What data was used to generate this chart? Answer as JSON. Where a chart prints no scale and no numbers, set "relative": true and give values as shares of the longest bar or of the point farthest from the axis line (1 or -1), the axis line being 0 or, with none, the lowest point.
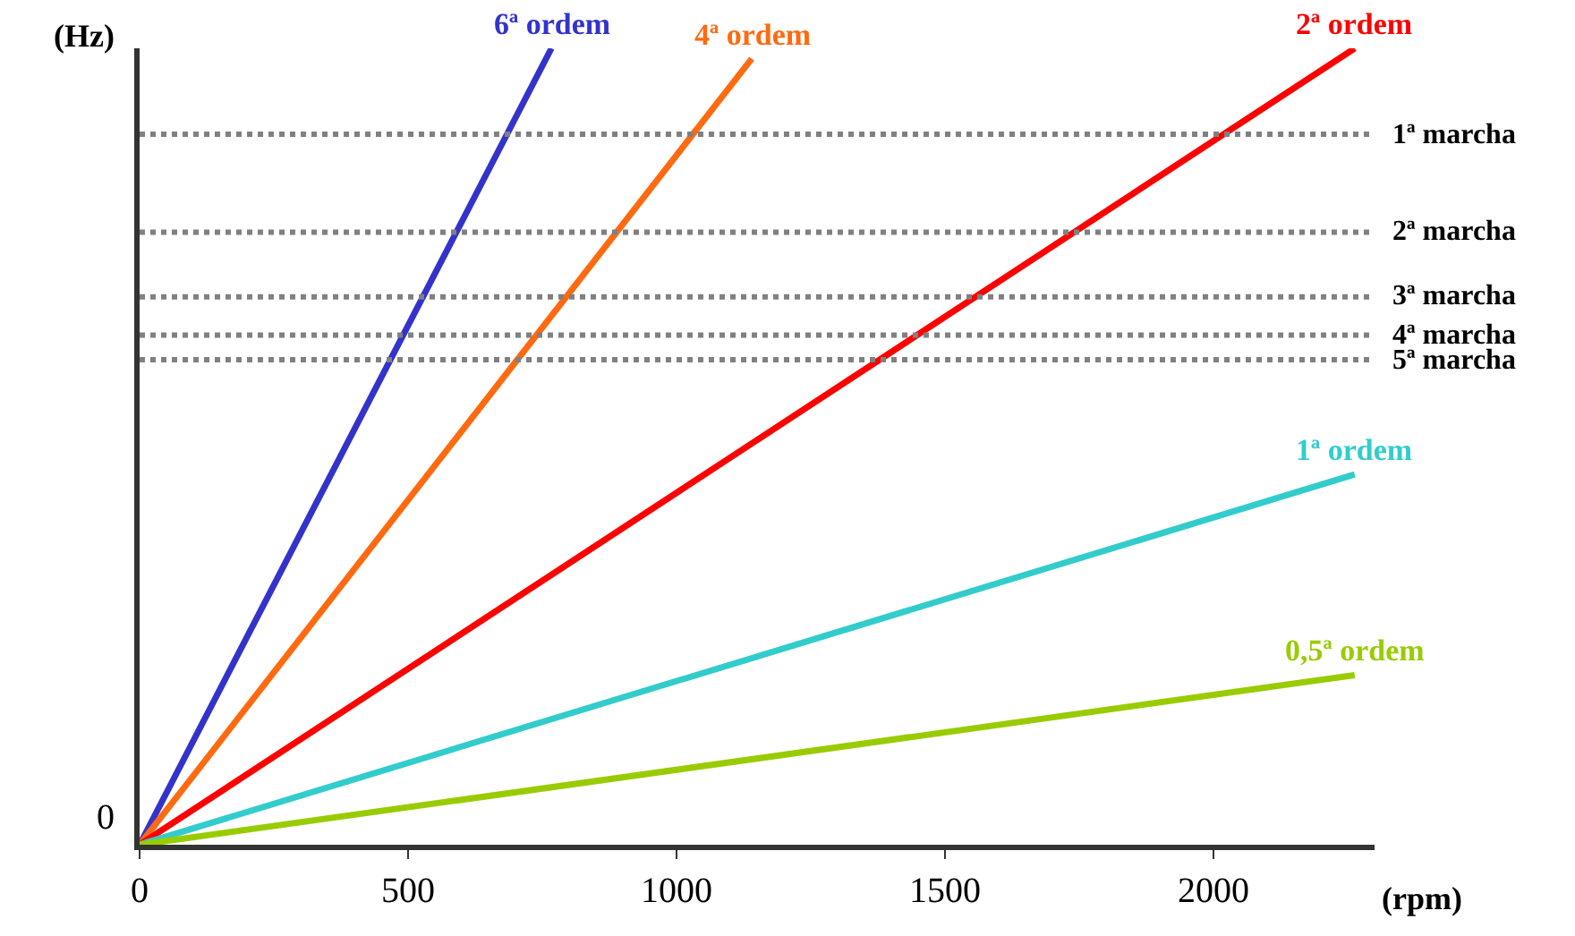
{
  "chart_data": {
    "type": "line",
    "relative": true,
    "xlabel": "(rpm)",
    "ylabel": "(Hz)",
    "xlim": [
      0,
      2300
    ],
    "xticks": [
      0,
      500,
      1000,
      1500,
      2000
    ],
    "legend": false,
    "marker": "none",
    "line_style": "solid",
    "annotations": [
      "0"
    ],
    "series": [
      {
        "name": "6ª ordem",
        "color": "#3333cc",
        "x": [
          0,
          767
        ],
        "values": [
          0,
          1
        ]
      },
      {
        "name": "4ª ordem",
        "color": "#ff6a10",
        "x": [
          0,
          1140
        ],
        "values": [
          0,
          0.987
        ]
      },
      {
        "name": "2ª ordem",
        "color": "#ff0000",
        "x": [
          0,
          2263
        ],
        "values": [
          0,
          1
        ]
      },
      {
        "name": "1ª ordem",
        "color": "#33cccc",
        "x": [
          0,
          2263
        ],
        "values": [
          0,
          0.465
        ]
      },
      {
        "name": "0,5ª ordem",
        "color": "#99cc00",
        "x": [
          0,
          2263
        ],
        "values": [
          0,
          0.213
        ]
      }
    ],
    "ref_lines": [
      {
        "axis": "y",
        "value": 0.892,
        "label": "1ª marcha",
        "color": "#808080",
        "line_style": "dotted"
      },
      {
        "axis": "y",
        "value": 0.769,
        "label": "2ª marcha",
        "color": "#808080",
        "line_style": "dotted"
      },
      {
        "axis": "y",
        "value": 0.688,
        "label": "3ª marcha",
        "color": "#808080",
        "line_style": "dotted"
      },
      {
        "axis": "y",
        "value": 0.64,
        "label": "4ª marcha",
        "color": "#808080",
        "line_style": "dotted"
      },
      {
        "axis": "y",
        "value": 0.609,
        "label": "5ª marcha",
        "color": "#808080",
        "line_style": "dotted"
      }
    ]
  }
}
